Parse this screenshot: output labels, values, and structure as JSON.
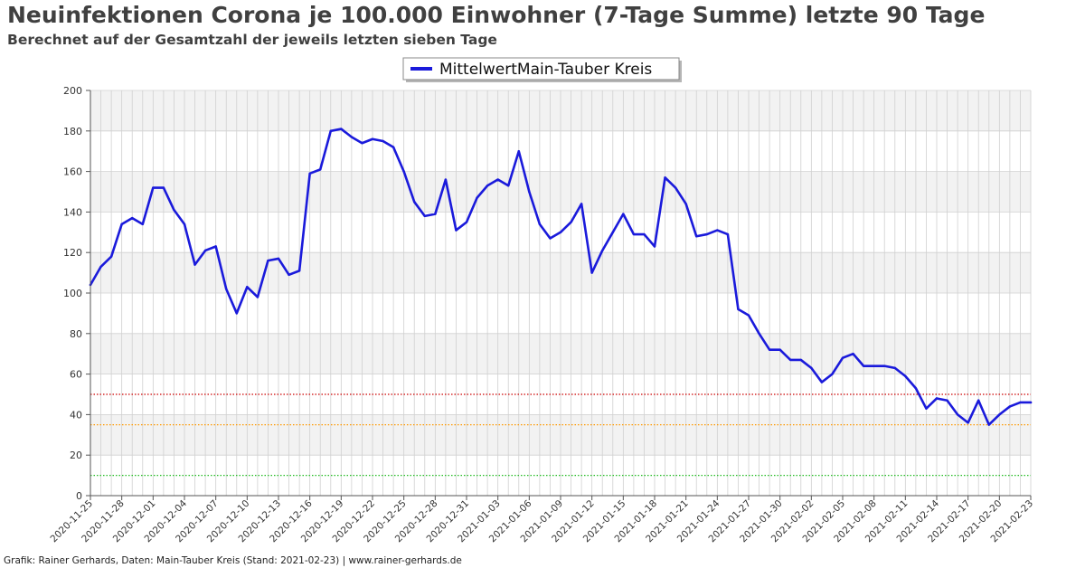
{
  "header": {
    "title": "Neuinfektionen Corona je 100.000 Einwohner (7-Tage Summe) letzte 90 Tage",
    "subtitle": "Berechnet auf der Gesamtzahl der jeweils letzten sieben Tage"
  },
  "footer": {
    "credit": "Grafik: Rainer Gerhards, Daten: Main-Tauber Kreis (Stand: 2021-02-23) | www.rainer-gerhards.de"
  },
  "colors": {
    "series": "#1a1adb",
    "band": "#f2f2f2",
    "grid": "#d0d0d0",
    "line50": "#cc0000",
    "line35": "#ff9900",
    "line10": "#22bb22"
  },
  "chart_data": {
    "type": "line",
    "title": "Neuinfektionen Corona je 100.000 Einwohner (7-Tage Summe) letzte 90 Tage",
    "subtitle": "Berechnet auf der Gesamtzahl der jeweils letzten sieben Tage",
    "xlabel": "",
    "ylabel": "",
    "ylim": [
      0,
      200
    ],
    "yticks": [
      0,
      20,
      40,
      60,
      80,
      100,
      120,
      140,
      160,
      180,
      200
    ],
    "x_start": "2020-11-25",
    "x_end": "2021-02-23",
    "xtick_labels": [
      "2020-11-25",
      "2020-11-28",
      "2020-12-01",
      "2020-12-04",
      "2020-12-07",
      "2020-12-10",
      "2020-12-13",
      "2020-12-16",
      "2020-12-19",
      "2020-12-22",
      "2020-12-25",
      "2020-12-28",
      "2020-12-31",
      "2021-01-03",
      "2021-01-06",
      "2021-01-09",
      "2021-01-12",
      "2021-01-15",
      "2021-01-18",
      "2021-01-21",
      "2021-01-24",
      "2021-01-27",
      "2021-01-30",
      "2021-02-02",
      "2021-02-05",
      "2021-02-08",
      "2021-02-11",
      "2021-02-14",
      "2021-02-17",
      "2021-02-20",
      "2021-02-23"
    ],
    "grid": true,
    "legend": "top-center",
    "series": [
      {
        "name": "MittelwertMain-Tauber Kreis",
        "values": [
          104,
          113,
          118,
          134,
          137,
          134,
          152,
          152,
          141,
          134,
          114,
          121,
          123,
          102,
          90,
          103,
          98,
          116,
          117,
          109,
          111,
          159,
          161,
          180,
          181,
          177,
          174,
          176,
          175,
          172,
          160,
          145,
          138,
          139,
          156,
          131,
          135,
          147,
          153,
          156,
          153,
          170,
          150,
          134,
          127,
          130,
          135,
          144,
          110,
          121,
          130,
          139,
          129,
          129,
          123,
          157,
          152,
          144,
          128,
          129,
          131,
          129,
          92,
          89,
          80,
          72,
          72,
          67,
          67,
          63,
          56,
          60,
          68,
          70,
          64,
          64,
          64,
          63,
          59,
          53,
          43,
          48,
          47,
          40,
          36,
          47,
          35,
          40,
          44,
          46,
          46
        ]
      }
    ],
    "reference_lines": [
      {
        "value": 50,
        "color": "#cc0000"
      },
      {
        "value": 35,
        "color": "#ff9900"
      },
      {
        "value": 10,
        "color": "#22bb22"
      }
    ]
  }
}
